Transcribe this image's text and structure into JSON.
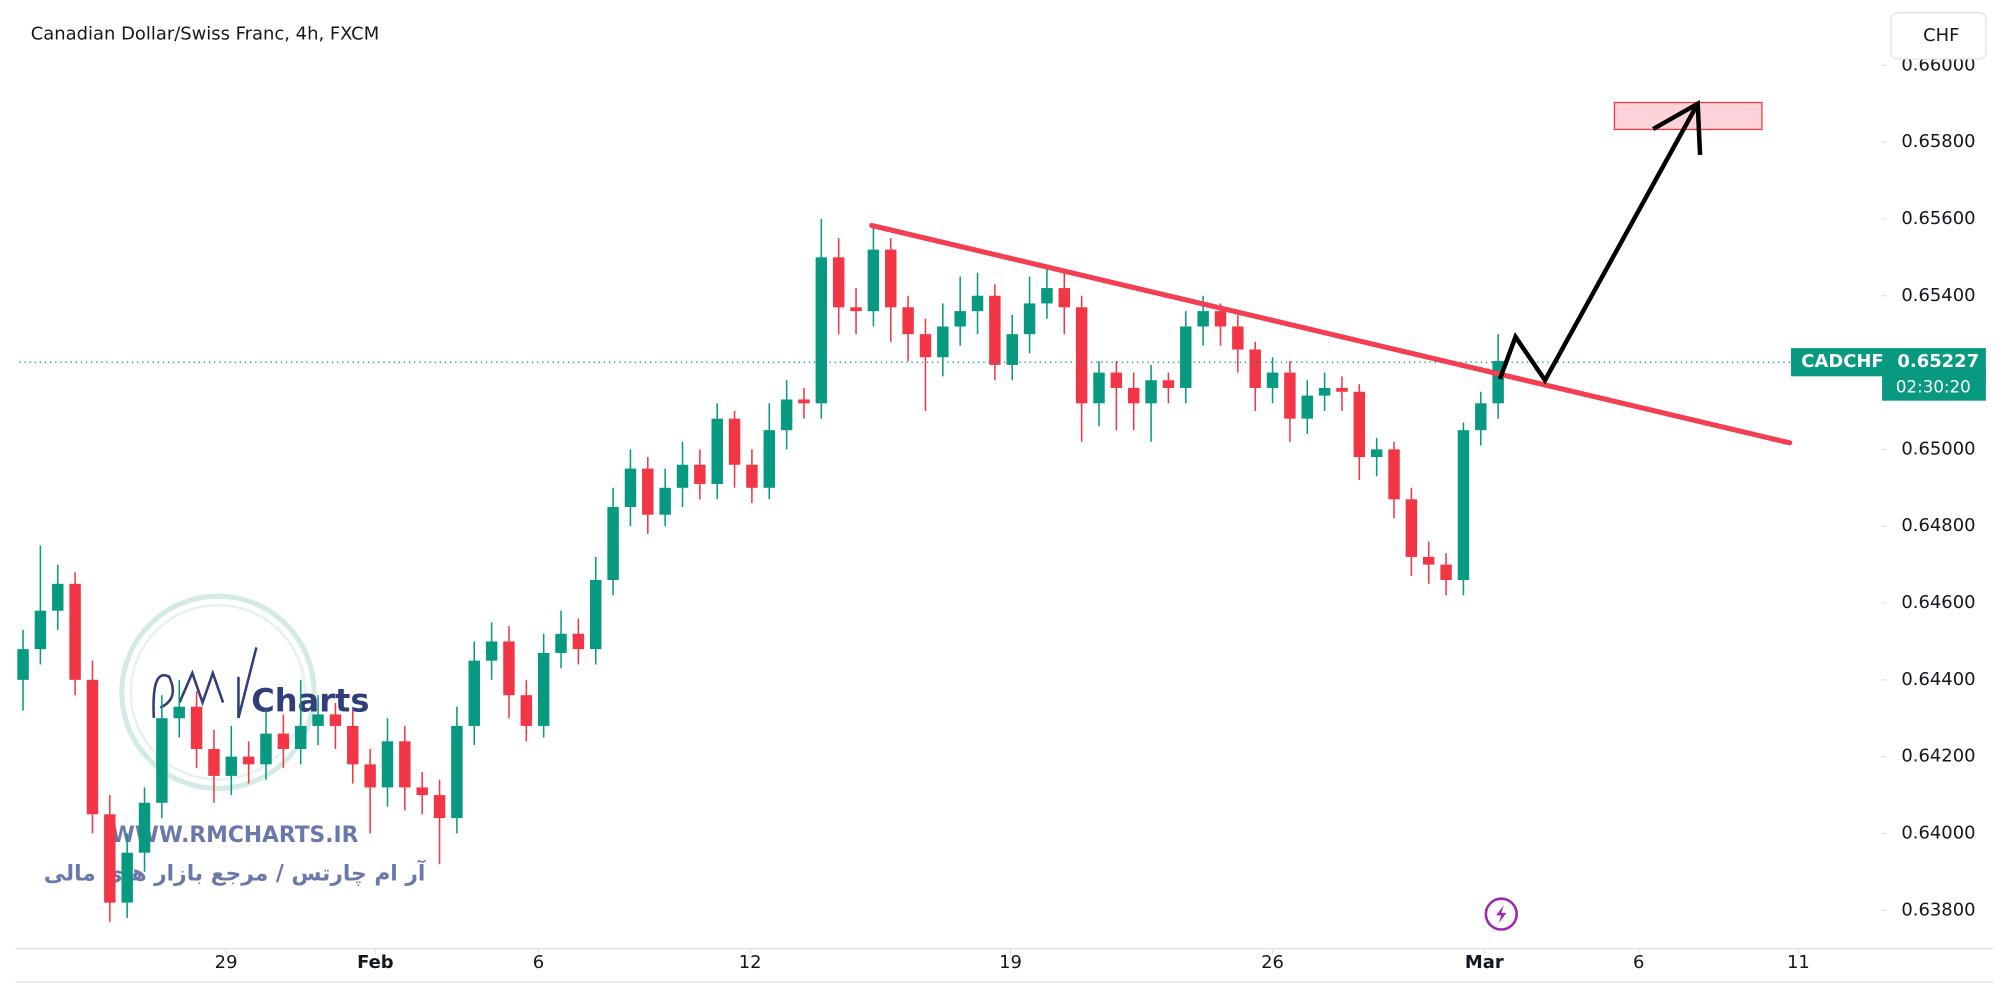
{
  "chart_data": {
    "type": "candlestick",
    "title": "Canadian Dollar/Swiss Franc, 4h, FXCM",
    "currency": "CHF",
    "symbol": "CADCHF",
    "current_price": 0.65227,
    "countdown": "02:30:20",
    "up_color": "#089981",
    "down_color": "#f23645",
    "open": [
      0.644,
      0.6448,
      0.6458,
      0.6465,
      0.644,
      0.6405,
      0.6382,
      0.6395,
      0.6408,
      0.643,
      0.6433,
      0.6422,
      0.6415,
      0.642,
      0.6418,
      0.6426,
      0.6422,
      0.6428,
      0.6431,
      0.6428,
      0.6418,
      0.6412,
      0.6424,
      0.6412,
      0.641,
      0.6404,
      0.6428,
      0.6445,
      0.645,
      0.6436,
      0.6428,
      0.6447,
      0.6452,
      0.6448,
      0.6466,
      0.6485,
      0.6495,
      0.6483,
      0.649,
      0.6496,
      0.6491,
      0.6508,
      0.6496,
      0.649,
      0.6505,
      0.6513,
      0.6512,
      0.655,
      0.6537,
      0.6536,
      0.6552,
      0.6537,
      0.653,
      0.6524,
      0.6532,
      0.6536,
      0.654,
      0.6522,
      0.653,
      0.6538,
      0.6542,
      0.6537,
      0.6512,
      0.652,
      0.6516,
      0.6512,
      0.6518,
      0.6516,
      0.6532,
      0.6536,
      0.6532,
      0.6526,
      0.6516,
      0.652,
      0.6508,
      0.6514,
      0.6516,
      0.6515,
      0.6498,
      0.65,
      0.6487,
      0.6472,
      0.647,
      0.6466,
      0.6505,
      0.6512
    ],
    "high": [
      0.6453,
      0.6475,
      0.647,
      0.6468,
      0.6445,
      0.641,
      0.64,
      0.6412,
      0.6436,
      0.644,
      0.6437,
      0.6427,
      0.6428,
      0.6424,
      0.6432,
      0.6431,
      0.644,
      0.6436,
      0.6434,
      0.6432,
      0.6422,
      0.643,
      0.6428,
      0.6416,
      0.6414,
      0.6433,
      0.645,
      0.6455,
      0.6454,
      0.644,
      0.6452,
      0.6458,
      0.6456,
      0.6472,
      0.649,
      0.65,
      0.6498,
      0.6495,
      0.6502,
      0.65,
      0.6512,
      0.651,
      0.65,
      0.6512,
      0.6518,
      0.6516,
      0.656,
      0.6555,
      0.6542,
      0.6558,
      0.6555,
      0.654,
      0.6534,
      0.6538,
      0.6545,
      0.6546,
      0.6543,
      0.6535,
      0.6545,
      0.6547,
      0.6546,
      0.654,
      0.6523,
      0.6523,
      0.652,
      0.6522,
      0.652,
      0.6536,
      0.654,
      0.6538,
      0.6535,
      0.6528,
      0.6524,
      0.6523,
      0.6518,
      0.652,
      0.6519,
      0.6517,
      0.6503,
      0.6502,
      0.649,
      0.6476,
      0.6473,
      0.6507,
      0.6515,
      0.653
    ],
    "low": [
      0.6432,
      0.6444,
      0.6453,
      0.6436,
      0.64,
      0.6377,
      0.6378,
      0.639,
      0.6404,
      0.6425,
      0.6417,
      0.6408,
      0.641,
      0.6413,
      0.6414,
      0.6417,
      0.6418,
      0.6423,
      0.6422,
      0.6413,
      0.64,
      0.6407,
      0.6406,
      0.6405,
      0.6392,
      0.64,
      0.6423,
      0.644,
      0.643,
      0.6424,
      0.6425,
      0.6443,
      0.6444,
      0.6444,
      0.6462,
      0.648,
      0.6478,
      0.648,
      0.6485,
      0.6487,
      0.6487,
      0.649,
      0.6486,
      0.6487,
      0.65,
      0.6508,
      0.6508,
      0.653,
      0.653,
      0.6532,
      0.6528,
      0.6523,
      0.651,
      0.6519,
      0.6527,
      0.653,
      0.6518,
      0.6518,
      0.6525,
      0.6534,
      0.653,
      0.6502,
      0.6506,
      0.6505,
      0.6505,
      0.6502,
      0.6512,
      0.6512,
      0.6527,
      0.6527,
      0.652,
      0.651,
      0.6512,
      0.6502,
      0.6504,
      0.651,
      0.651,
      0.6492,
      0.6493,
      0.6482,
      0.6467,
      0.6465,
      0.6462,
      0.6462,
      0.6501,
      0.6508
    ],
    "close": [
      0.6448,
      0.6458,
      0.6465,
      0.644,
      0.6405,
      0.6382,
      0.6395,
      0.6408,
      0.643,
      0.6433,
      0.6422,
      0.6415,
      0.642,
      0.6418,
      0.6426,
      0.6422,
      0.6428,
      0.6431,
      0.6428,
      0.6418,
      0.6412,
      0.6424,
      0.6412,
      0.641,
      0.6404,
      0.6428,
      0.6445,
      0.645,
      0.6436,
      0.6428,
      0.6447,
      0.6452,
      0.6448,
      0.6466,
      0.6485,
      0.6495,
      0.6483,
      0.649,
      0.6496,
      0.6491,
      0.6508,
      0.6496,
      0.649,
      0.6505,
      0.6513,
      0.6512,
      0.655,
      0.6537,
      0.6536,
      0.6552,
      0.6537,
      0.653,
      0.6524,
      0.6532,
      0.6536,
      0.654,
      0.6522,
      0.653,
      0.6538,
      0.6542,
      0.6537,
      0.6512,
      0.652,
      0.6516,
      0.6512,
      0.6518,
      0.6516,
      0.6532,
      0.6536,
      0.6532,
      0.6526,
      0.6516,
      0.652,
      0.6508,
      0.6514,
      0.6516,
      0.6515,
      0.6498,
      0.65,
      0.6487,
      0.6472,
      0.647,
      0.6466,
      0.6505,
      0.6512,
      0.6523
    ],
    "xlim": [
      -0.22,
      106.9
    ],
    "xticks": [
      {
        "value": 11.7,
        "label": "29"
      },
      {
        "value": 20.3,
        "label": "Feb"
      },
      {
        "value": 29.7,
        "label": "6"
      },
      {
        "value": 41.9,
        "label": "12"
      },
      {
        "value": 56.9,
        "label": "19"
      },
      {
        "value": 72,
        "label": "26"
      },
      {
        "value": 84.2,
        "label": "Mar"
      },
      {
        "value": 93.1,
        "label": "6"
      },
      {
        "value": 102.3,
        "label": "11"
      }
    ],
    "ylim": [
      0.637,
      0.6617
    ],
    "yticks": [
      {
        "value": 0.638,
        "label": "0.63800"
      },
      {
        "value": 0.64,
        "label": "0.64000"
      },
      {
        "value": 0.642,
        "label": "0.64200"
      },
      {
        "value": 0.644,
        "label": "0.64400"
      },
      {
        "value": 0.646,
        "label": "0.64600"
      },
      {
        "value": 0.648,
        "label": "0.64800"
      },
      {
        "value": 0.65,
        "label": "0.65000"
      },
      {
        "value": 0.652,
        "label": "0.65200"
      },
      {
        "value": 0.654,
        "label": "0.65400"
      },
      {
        "value": 0.656,
        "label": "0.65600"
      },
      {
        "value": 0.658,
        "label": "0.65800"
      },
      {
        "value": 0.66,
        "label": "0.66000"
      }
    ],
    "drawings": {
      "trendline": {
        "x": [
          48.9,
          101.8
        ],
        "y": [
          0.65583,
          0.65017
        ],
        "color": "#f23f52"
      },
      "arrow": {
        "x": [
          85.1,
          86.0,
          87.7,
          96.5
        ],
        "y": [
          0.65183,
          0.65293,
          0.6518,
          0.659
        ],
        "color": "#000000"
      },
      "target_box": {
        "x": [
          91.7,
          100.2
        ],
        "y": [
          0.65903,
          0.65833
        ],
        "color": "#f23645"
      }
    }
  },
  "watermark": {
    "brand": "Charts",
    "url": "WWW.RMCHARTS.IR",
    "tagline": "آر ام چارتس / مرجع بازار های مالی"
  }
}
